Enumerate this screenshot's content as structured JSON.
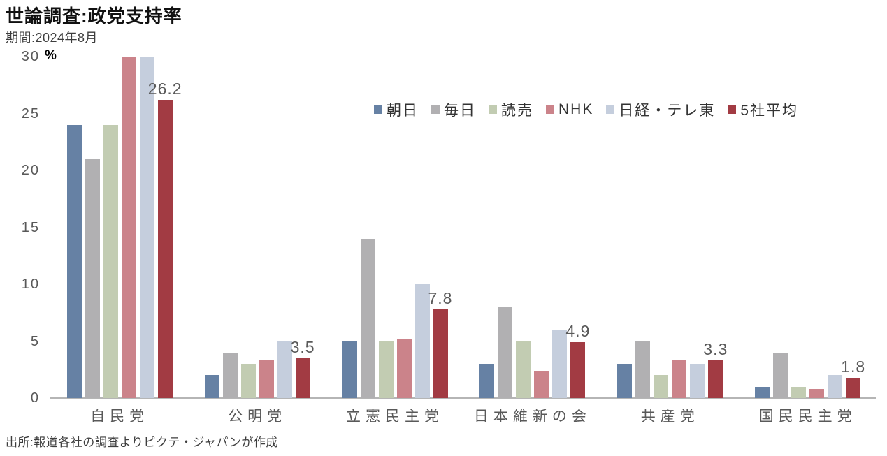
{
  "title": "世論調査:政党支持率",
  "subtitle": "期間:2024年8月",
  "unit_label": "%",
  "source": "出所:報道各社の調査よりピクテ・ジャパンが作成",
  "chart_data": {
    "type": "bar",
    "title": "世論調査:政党支持率",
    "subtitle": "期間:2024年8月",
    "ylabel": "%",
    "ylim": [
      0,
      30
    ],
    "yticks": [
      0,
      5,
      10,
      15,
      20,
      25,
      30
    ],
    "grid": false,
    "legend_position": "top-right",
    "axis_line_color": "#b5b5b5",
    "categories": [
      "自民党",
      "公明党",
      "立憲民主党",
      "日本維新の会",
      "共産党",
      "国民民主党"
    ],
    "series": [
      {
        "name": "朝日",
        "color": "#6681a4",
        "values": [
          24,
          2,
          5,
          3,
          3,
          1
        ]
      },
      {
        "name": "毎日",
        "color": "#b1b0b2",
        "values": [
          21,
          4,
          14,
          8,
          5,
          4
        ]
      },
      {
        "name": "読売",
        "color": "#c2ccb2",
        "values": [
          24,
          3,
          5,
          5,
          2,
          1
        ]
      },
      {
        "name": "NHK",
        "color": "#cb838a",
        "values": [
          31,
          3.3,
          5.2,
          2.4,
          3.4,
          0.8
        ]
      },
      {
        "name": "日経・テレ東",
        "color": "#c5cedd",
        "values": [
          31,
          5,
          10,
          6,
          3,
          2
        ]
      },
      {
        "name": "5社平均",
        "color": "#a23b43",
        "values": [
          26.2,
          3.5,
          7.8,
          4.9,
          3.3,
          1.8
        ],
        "labels": [
          "26.2",
          "3.5",
          "7.8",
          "4.9",
          "3.3",
          "1.8"
        ]
      }
    ]
  }
}
